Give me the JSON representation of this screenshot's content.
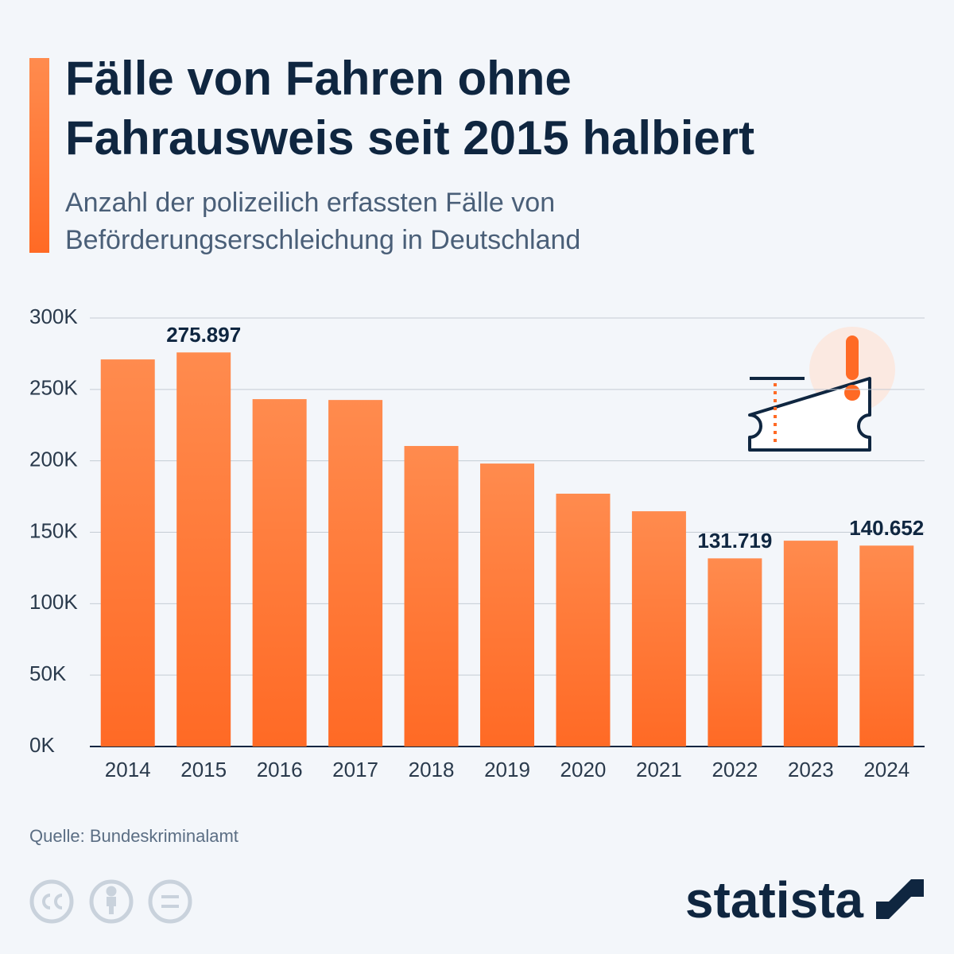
{
  "chart_data": {
    "type": "bar",
    "title_lines": [
      "Fälle von Fahren ohne",
      "Fahrausweis seit 2015 halbiert"
    ],
    "subtitle_lines": [
      "Anzahl der polizeilich erfassten Fälle von",
      "Beförderungserschleichung in Deutschland"
    ],
    "categories": [
      "2014",
      "2015",
      "2016",
      "2017",
      "2018",
      "2019",
      "2020",
      "2021",
      "2022",
      "2023",
      "2024"
    ],
    "values": [
      271000,
      275897,
      243200,
      242600,
      210400,
      198100,
      177000,
      164700,
      131719,
      144100,
      140652
    ],
    "value_labels": [
      null,
      "275.897",
      null,
      null,
      null,
      null,
      null,
      null,
      "131.719",
      null,
      "140.652"
    ],
    "color": "#ff8b4e",
    "ylim": [
      0,
      300000
    ],
    "yticks": [
      {
        "value": 0,
        "label": "0K"
      },
      {
        "value": 50000,
        "label": "50K"
      },
      {
        "value": 100000,
        "label": "100K"
      },
      {
        "value": 150000,
        "label": "150K"
      },
      {
        "value": 200000,
        "label": "200K"
      },
      {
        "value": 250000,
        "label": "250K"
      },
      {
        "value": 300000,
        "label": "300K"
      }
    ],
    "grid": true,
    "source": "Quelle: Bundeskriminalamt",
    "logo": "statista"
  }
}
